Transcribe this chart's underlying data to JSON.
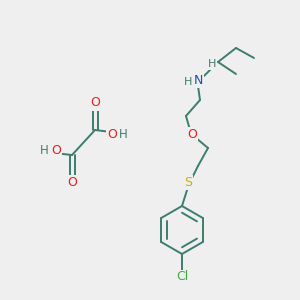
{
  "bg_color": "#efefef",
  "atom_colors": {
    "C": "#3d7d6e",
    "N": "#1b4fa8",
    "O": "#dd2222",
    "S": "#c8b400",
    "Cl": "#44aa44",
    "H": "#3d7d6e"
  },
  "bond_color": "#3d7d6e",
  "figsize": [
    3.0,
    3.0
  ],
  "dpi": 100
}
